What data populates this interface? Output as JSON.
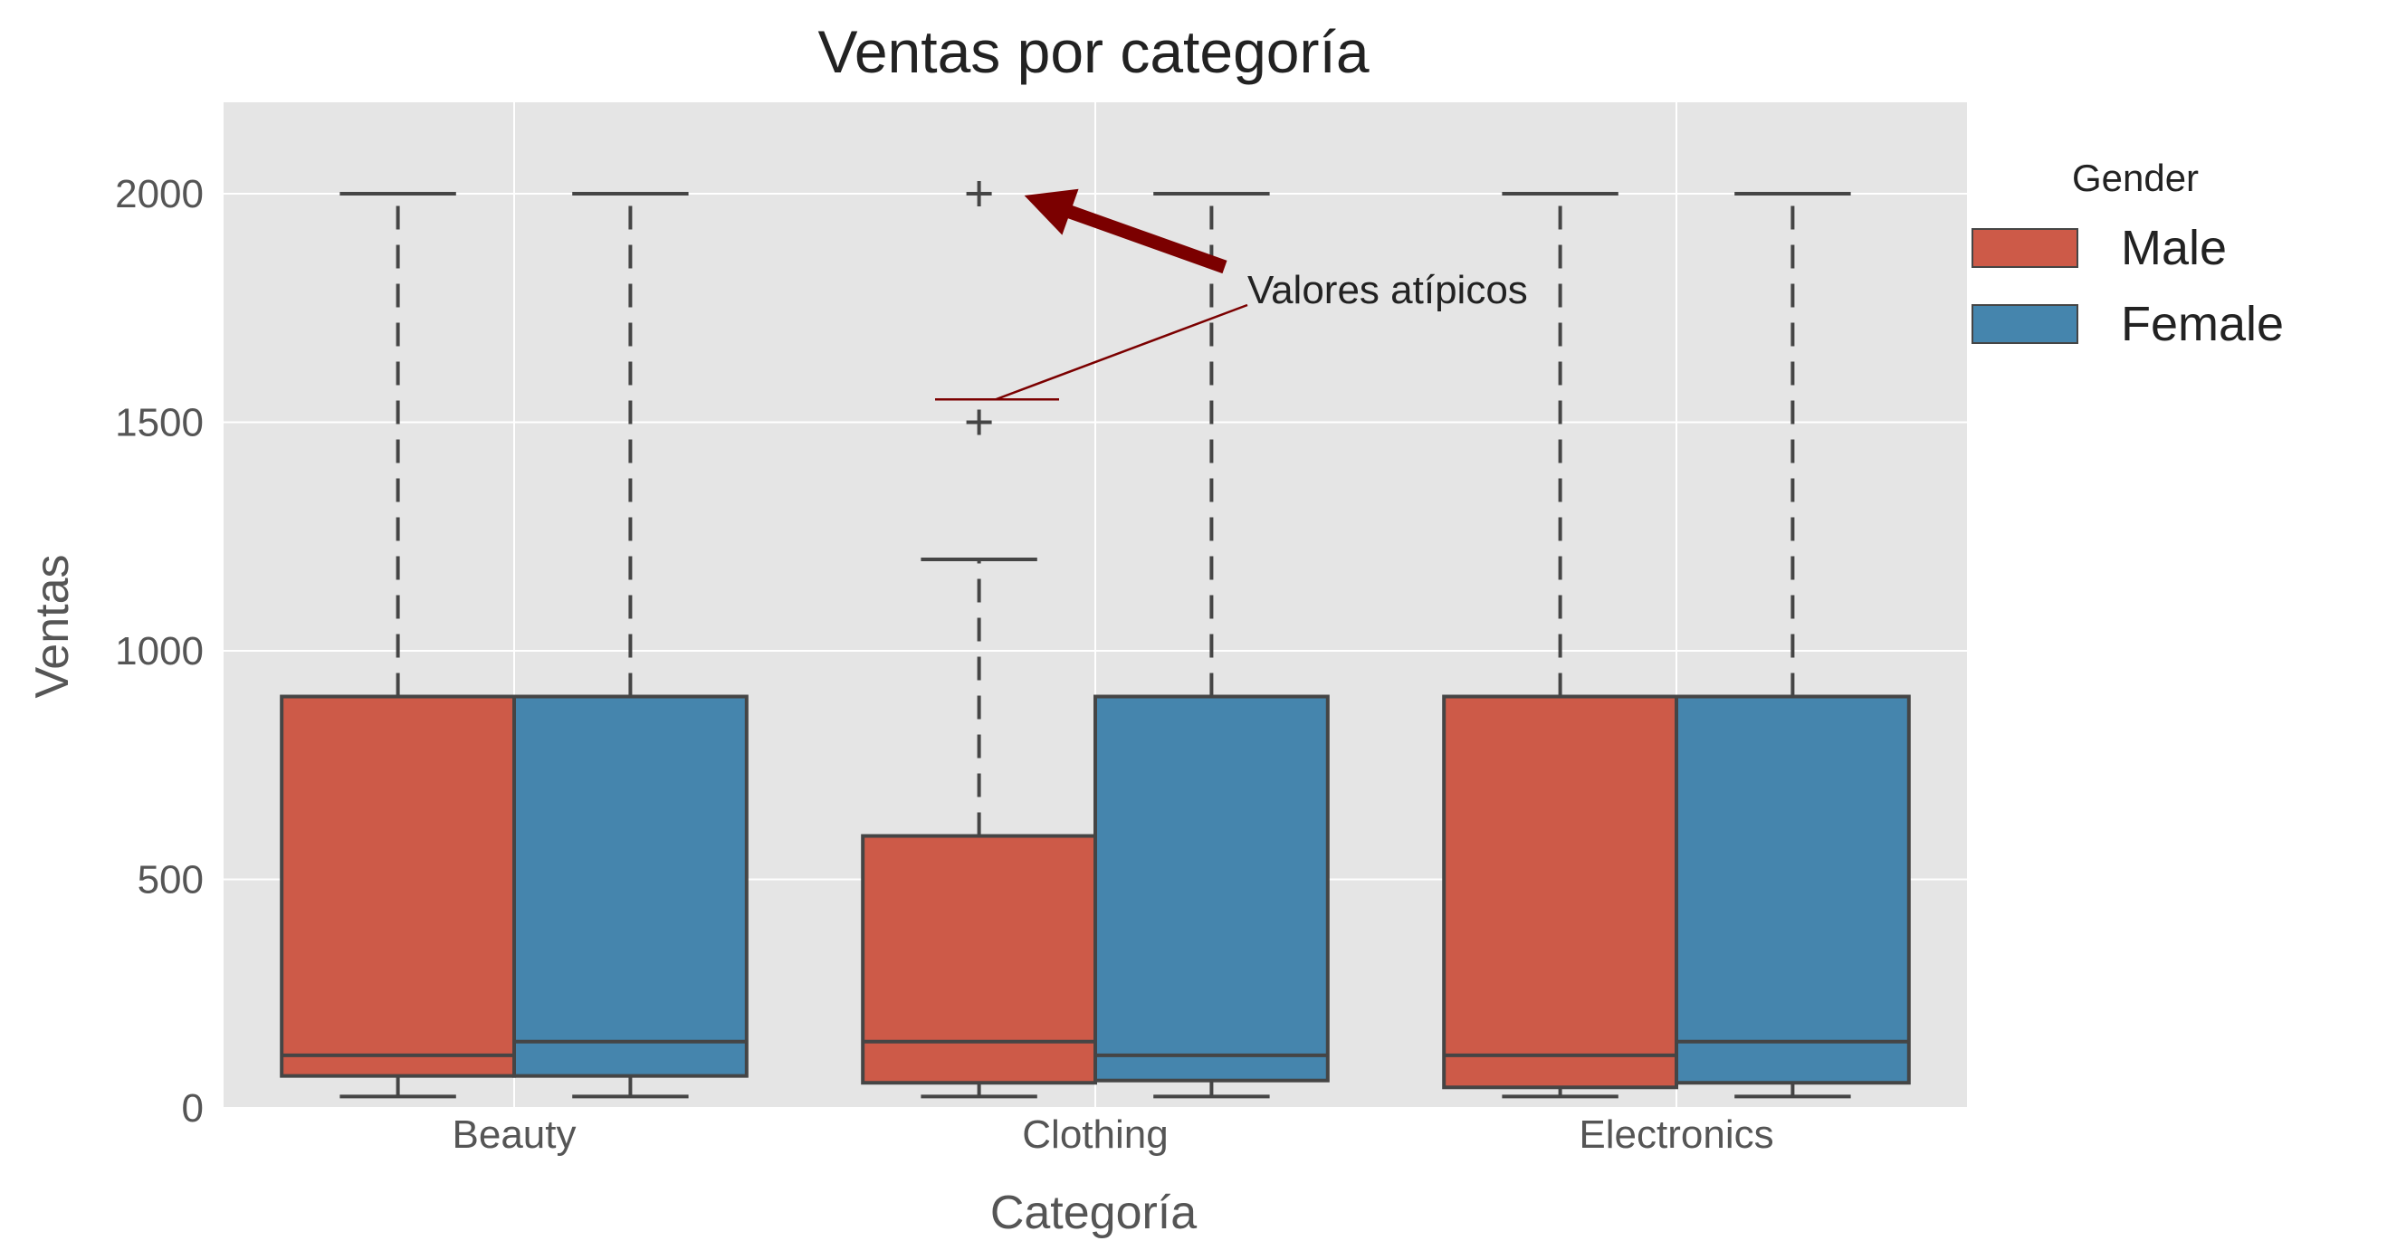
{
  "chart_data": {
    "type": "box",
    "title": "Ventas por categoría",
    "xlabel": "Categoría",
    "ylabel": "Ventas",
    "ylim": [
      0,
      2200
    ],
    "yticks": [
      0,
      500,
      1000,
      1500,
      2000
    ],
    "categories": [
      "Beauty",
      "Clothing",
      "Electronics"
    ],
    "grid": true,
    "legend": {
      "title": "Gender",
      "placement": "outside-right",
      "entries": [
        "Male",
        "Female"
      ]
    },
    "series": [
      {
        "name": "Male",
        "color": "#cd5a48",
        "boxes": [
          {
            "category": "Beauty",
            "whisker_low": 25,
            "q1": 70,
            "median": 115,
            "q3": 900,
            "whisker_high": 2000,
            "outliers": []
          },
          {
            "category": "Clothing",
            "whisker_low": 25,
            "q1": 55,
            "median": 145,
            "q3": 595,
            "whisker_high": 1200,
            "outliers": [
              1500,
              2000
            ]
          },
          {
            "category": "Electronics",
            "whisker_low": 25,
            "q1": 45,
            "median": 115,
            "q3": 900,
            "whisker_high": 2000,
            "outliers": []
          }
        ]
      },
      {
        "name": "Female",
        "color": "#4585ad",
        "boxes": [
          {
            "category": "Beauty",
            "whisker_low": 25,
            "q1": 70,
            "median": 145,
            "q3": 900,
            "whisker_high": 2000,
            "outliers": []
          },
          {
            "category": "Clothing",
            "whisker_low": 25,
            "q1": 60,
            "median": 115,
            "q3": 900,
            "whisker_high": 2000,
            "outliers": []
          },
          {
            "category": "Electronics",
            "whisker_low": 25,
            "q1": 55,
            "median": 145,
            "q3": 900,
            "whisker_high": 2000,
            "outliers": []
          }
        ]
      }
    ],
    "annotations": [
      {
        "text": "Valores atípicos",
        "color": "#7b0000",
        "points_to": {
          "category": "Clothing",
          "series": "Male",
          "value": 2000
        },
        "underline_at_value": 1550
      }
    ]
  }
}
